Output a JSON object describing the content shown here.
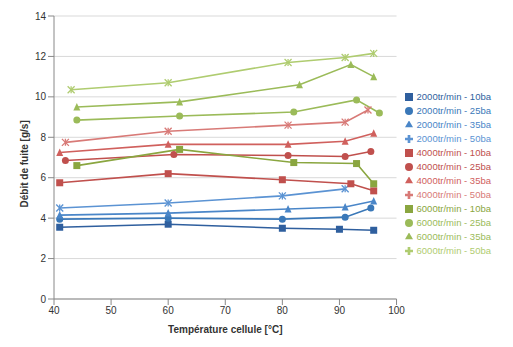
{
  "chart_data": {
    "type": "line",
    "x_label": "Température cellule [°C]",
    "y_label": "Débit de fuite [g/s]",
    "xlim": [
      40,
      100
    ],
    "xticks": [
      40,
      50,
      60,
      70,
      80,
      90,
      100
    ],
    "ylim": [
      0,
      14
    ],
    "yticks": [
      0,
      2,
      4,
      6,
      8,
      10,
      12,
      14
    ],
    "grid": true,
    "legend": "right",
    "series": [
      {
        "name": "2000tr/min - 10ba",
        "color": "#2f5f9e",
        "marker": "square",
        "x": [
          41,
          60,
          80,
          90,
          96
        ],
        "values": [
          3.55,
          3.7,
          3.5,
          3.45,
          3.4
        ]
      },
      {
        "name": "2000tr/min - 25ba",
        "color": "#3a78b8",
        "marker": "circle",
        "x": [
          41,
          60,
          80,
          91,
          95.5
        ],
        "values": [
          3.95,
          4.0,
          3.95,
          4.05,
          4.5
        ]
      },
      {
        "name": "2000tr/min - 35ba",
        "color": "#4a86c8",
        "marker": "triangle",
        "x": [
          41,
          60,
          81,
          91,
          96
        ],
        "values": [
          4.15,
          4.25,
          4.45,
          4.55,
          4.85
        ]
      },
      {
        "name": "2000tr/min - 50ba",
        "color": "#5b93d3",
        "marker": "cross",
        "x": [
          41,
          60,
          80,
          91
        ],
        "values": [
          4.5,
          4.75,
          5.1,
          5.45
        ]
      },
      {
        "name": "4000tr/min - 10ba",
        "color": "#c0504d",
        "marker": "square",
        "x": [
          41,
          60,
          80,
          92,
          96
        ],
        "values": [
          5.75,
          6.2,
          5.9,
          5.7,
          5.35
        ]
      },
      {
        "name": "4000tr/min - 25ba",
        "color": "#c0504d",
        "marker": "circle",
        "x": [
          42,
          61,
          81,
          91,
          95.5
        ],
        "values": [
          6.85,
          7.15,
          7.1,
          7.05,
          7.3
        ]
      },
      {
        "name": "4000tr/min - 35ba",
        "color": "#d0605d",
        "marker": "triangle",
        "x": [
          41,
          60,
          81,
          91,
          96
        ],
        "values": [
          7.25,
          7.65,
          7.65,
          7.8,
          8.2
        ]
      },
      {
        "name": "4000tr/min - 50ba",
        "color": "#d87a77",
        "marker": "cross",
        "x": [
          42,
          60,
          81,
          91,
          95
        ],
        "values": [
          7.75,
          8.3,
          8.6,
          8.75,
          9.35
        ]
      },
      {
        "name": "6000tr/min - 10ba",
        "color": "#8aa640",
        "marker": "square",
        "x": [
          44,
          62,
          82,
          93,
          96
        ],
        "values": [
          6.6,
          7.4,
          6.75,
          6.7,
          5.7
        ]
      },
      {
        "name": "6000tr/min - 25ba",
        "color": "#9bbb59",
        "marker": "circle",
        "x": [
          44,
          62,
          82,
          93,
          97
        ],
        "values": [
          8.85,
          9.05,
          9.25,
          9.85,
          9.2
        ]
      },
      {
        "name": "6000tr/min - 35ba",
        "color": "#9bbb59",
        "marker": "triangle",
        "x": [
          44,
          62,
          83,
          92,
          96
        ],
        "values": [
          9.5,
          9.75,
          10.6,
          11.6,
          11.0
        ]
      },
      {
        "name": "6000tr/min - 50ba",
        "color": "#afcc70",
        "marker": "cross",
        "x": [
          43,
          60,
          81,
          91,
          96
        ],
        "values": [
          10.35,
          10.7,
          11.7,
          11.95,
          12.15
        ]
      }
    ]
  }
}
